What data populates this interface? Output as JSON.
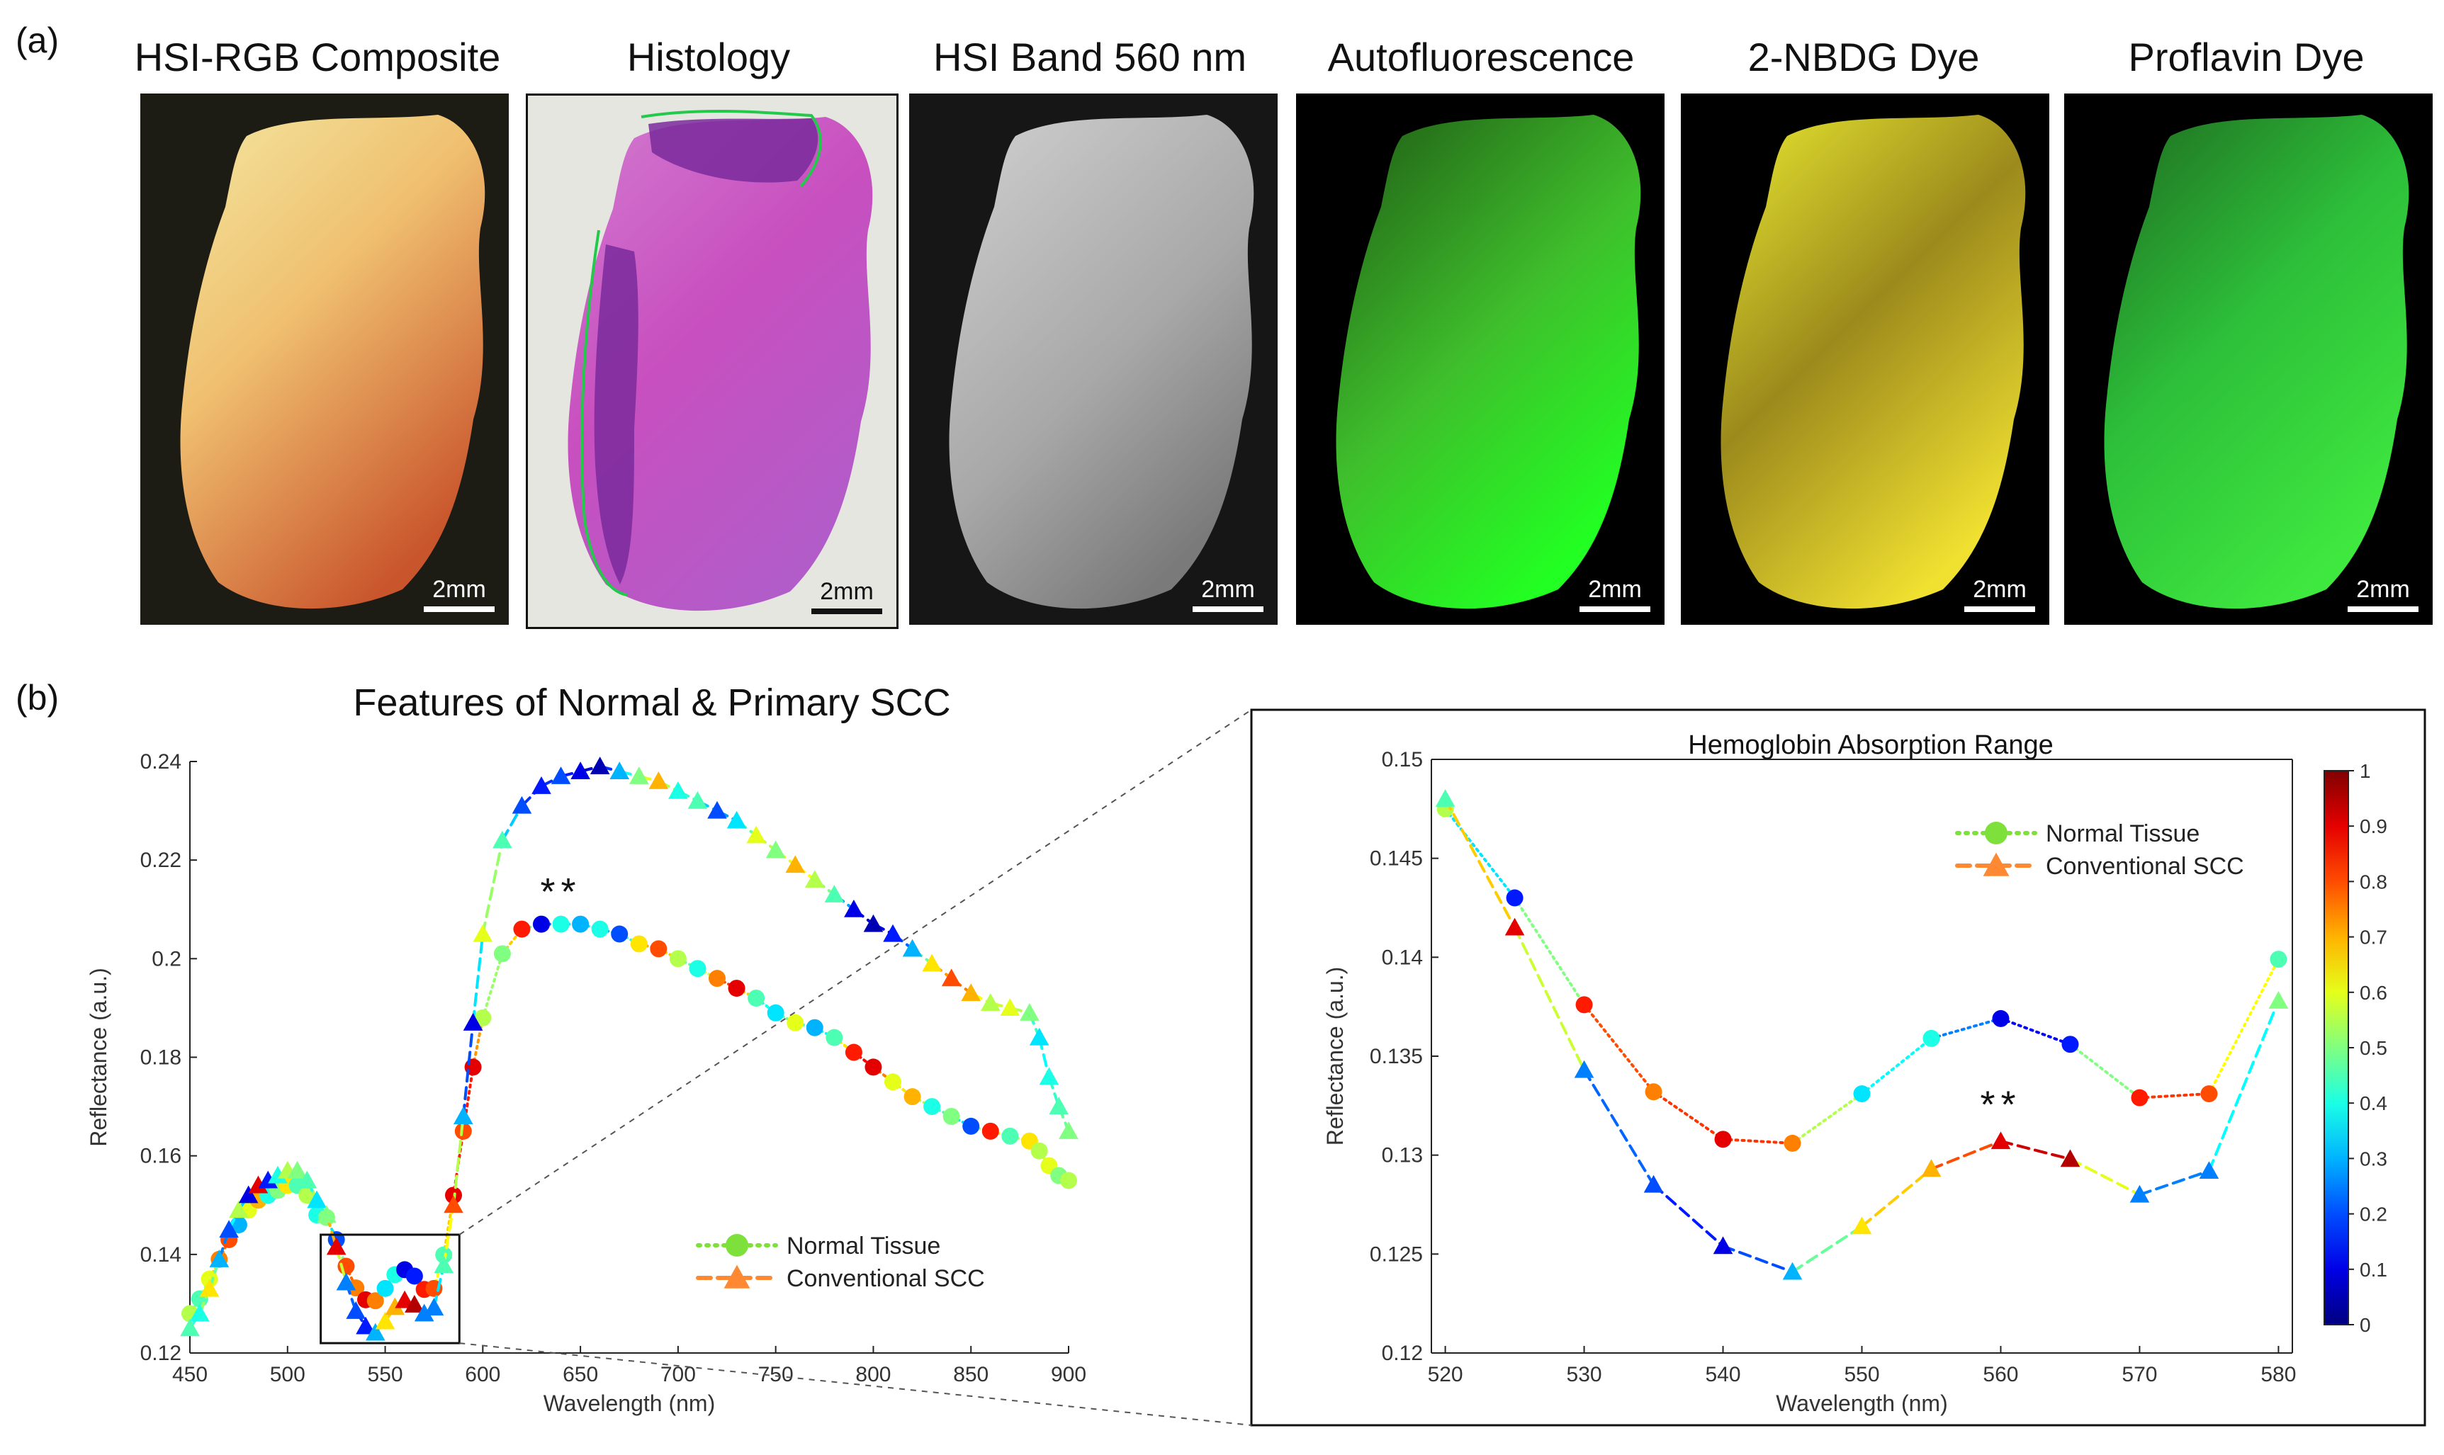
{
  "figure": {
    "panel_a_label": "(a)",
    "panel_b_label": "(b)",
    "images": [
      {
        "title": "HSI-RGB Composite",
        "scale": "2mm",
        "kind": "rgb"
      },
      {
        "title": "Histology",
        "scale": "2mm",
        "kind": "histology"
      },
      {
        "title": "HSI Band 560 nm",
        "scale": "2mm",
        "kind": "band"
      },
      {
        "title": "Autofluorescence",
        "scale": "2mm",
        "kind": "autofluo"
      },
      {
        "title": "2-NBDG Dye",
        "scale": "2mm",
        "kind": "nbdg"
      },
      {
        "title": "Proflavin Dye",
        "scale": "2mm",
        "kind": "proflavin"
      }
    ]
  },
  "chart_data": [
    {
      "type": "line",
      "title": "Features of Normal & Primary SCC",
      "xlabel": "Wavelength (nm)",
      "ylabel": "Reflectance (a.u.)",
      "xlim": [
        450,
        900
      ],
      "ylim": [
        0.12,
        0.24
      ],
      "xticks": [
        "450",
        "500",
        "550",
        "600",
        "650",
        "700",
        "750",
        "800",
        "850",
        "900"
      ],
      "yticks": [
        "0.12",
        "0.14",
        "0.16",
        "0.18",
        "0.2",
        "0.22",
        "0.24"
      ],
      "annotation": "**",
      "annotation_at": [
        640,
        0.211
      ],
      "inset_box": {
        "x": [
          517,
          588
        ],
        "y": [
          0.122,
          0.144
        ]
      },
      "legend": [
        "Normal Tissue",
        "Conventional SCC"
      ],
      "legend_position": "lower-right",
      "series": [
        {
          "name": "Normal Tissue",
          "marker": "circle",
          "line": "dotted",
          "x": [
            450,
            455,
            460,
            465,
            470,
            475,
            480,
            485,
            490,
            495,
            500,
            505,
            510,
            515,
            520,
            525,
            530,
            535,
            540,
            545,
            550,
            555,
            560,
            565,
            570,
            575,
            580,
            585,
            590,
            595,
            600,
            610,
            620,
            630,
            640,
            650,
            660,
            670,
            680,
            690,
            700,
            710,
            720,
            730,
            740,
            750,
            760,
            770,
            780,
            790,
            800,
            810,
            820,
            830,
            840,
            850,
            860,
            870,
            880,
            885,
            890,
            895,
            900
          ],
          "y": [
            0.128,
            0.131,
            0.135,
            0.139,
            0.143,
            0.146,
            0.149,
            0.151,
            0.152,
            0.153,
            0.154,
            0.154,
            0.152,
            0.148,
            0.1475,
            0.143,
            0.1376,
            0.1332,
            0.1308,
            0.1306,
            0.1331,
            0.1359,
            0.1369,
            0.1356,
            0.1329,
            0.1331,
            0.1399,
            0.152,
            0.165,
            0.178,
            0.188,
            0.201,
            0.206,
            0.207,
            0.207,
            0.207,
            0.206,
            0.205,
            0.203,
            0.202,
            0.2,
            0.198,
            0.196,
            0.194,
            0.192,
            0.189,
            0.187,
            0.186,
            0.184,
            0.181,
            0.178,
            0.175,
            0.172,
            0.17,
            0.168,
            0.166,
            0.165,
            0.164,
            0.163,
            0.161,
            0.158,
            0.156,
            0.155
          ],
          "colors": [
            0.55,
            0.45,
            0.6,
            0.75,
            0.8,
            0.3,
            0.6,
            0.7,
            0.4,
            0.5,
            0.65,
            0.45,
            0.55,
            0.4,
            0.5,
            0.2,
            0.8,
            0.75,
            0.9,
            0.75,
            0.35,
            0.4,
            0.1,
            0.15,
            0.85,
            0.8,
            0.45,
            0.9,
            0.8,
            0.9,
            0.55,
            0.5,
            0.85,
            0.1,
            0.4,
            0.3,
            0.4,
            0.2,
            0.65,
            0.8,
            0.55,
            0.4,
            0.75,
            0.9,
            0.45,
            0.35,
            0.6,
            0.3,
            0.45,
            0.85,
            0.9,
            0.6,
            0.7,
            0.4,
            0.5,
            0.2,
            0.85,
            0.45,
            0.65,
            0.55,
            0.6,
            0.5,
            0.55
          ]
        },
        {
          "name": "Conventional SCC",
          "marker": "triangle",
          "line": "dashed",
          "x": [
            450,
            455,
            460,
            465,
            470,
            475,
            480,
            485,
            490,
            495,
            500,
            505,
            510,
            515,
            520,
            525,
            530,
            535,
            540,
            545,
            550,
            555,
            560,
            565,
            570,
            575,
            580,
            585,
            590,
            595,
            600,
            610,
            620,
            630,
            640,
            650,
            660,
            670,
            680,
            690,
            700,
            710,
            720,
            730,
            740,
            750,
            760,
            770,
            780,
            790,
            800,
            810,
            820,
            830,
            840,
            850,
            860,
            870,
            880,
            885,
            890,
            895,
            900
          ],
          "y": [
            0.125,
            0.128,
            0.133,
            0.139,
            0.145,
            0.149,
            0.152,
            0.154,
            0.155,
            0.156,
            0.157,
            0.157,
            0.155,
            0.151,
            0.148,
            0.1415,
            0.1343,
            0.1285,
            0.1254,
            0.1241,
            0.1264,
            0.1293,
            0.1307,
            0.1298,
            0.128,
            0.1292,
            0.1378,
            0.15,
            0.168,
            0.187,
            0.205,
            0.224,
            0.231,
            0.235,
            0.237,
            0.238,
            0.239,
            0.238,
            0.237,
            0.236,
            0.234,
            0.232,
            0.23,
            0.228,
            0.225,
            0.222,
            0.219,
            0.216,
            0.213,
            0.21,
            0.207,
            0.205,
            0.202,
            0.199,
            0.196,
            0.193,
            0.191,
            0.19,
            0.189,
            0.184,
            0.176,
            0.17,
            0.165
          ],
          "colors": [
            0.45,
            0.4,
            0.65,
            0.3,
            0.2,
            0.55,
            0.1,
            0.9,
            0.15,
            0.4,
            0.55,
            0.5,
            0.45,
            0.35,
            0.5,
            0.9,
            0.25,
            0.2,
            0.15,
            0.3,
            0.65,
            0.7,
            0.9,
            0.95,
            0.25,
            0.25,
            0.45,
            0.8,
            0.3,
            0.1,
            0.6,
            0.45,
            0.2,
            0.15,
            0.2,
            0.1,
            0.05,
            0.3,
            0.5,
            0.7,
            0.4,
            0.45,
            0.2,
            0.35,
            0.6,
            0.5,
            0.7,
            0.55,
            0.45,
            0.1,
            0.05,
            0.15,
            0.3,
            0.65,
            0.8,
            0.7,
            0.55,
            0.6,
            0.5,
            0.35,
            0.4,
            0.45,
            0.5
          ]
        }
      ]
    },
    {
      "type": "line",
      "title": "Hemoglobin Absorption Range",
      "xlabel": "Wavelength (nm)",
      "ylabel": "Reflectance (a.u.)",
      "xlim": [
        519,
        581
      ],
      "ylim": [
        0.12,
        0.15
      ],
      "xticks": [
        "520",
        "530",
        "540",
        "550",
        "560",
        "570",
        "580"
      ],
      "yticks": [
        "0.12",
        "0.125",
        "0.13",
        "0.135",
        "0.14",
        "0.145",
        "0.15"
      ],
      "annotation": "**",
      "annotation_at": [
        560,
        0.1319
      ],
      "legend": [
        "Normal Tissue",
        "Conventional SCC"
      ],
      "legend_position": "top-right",
      "colorbar": {
        "min": 0,
        "max": 1,
        "ticks": [
          "0",
          "0.1",
          "0.2",
          "0.3",
          "0.4",
          "0.5",
          "0.6",
          "0.7",
          "0.8",
          "0.9",
          "1"
        ]
      },
      "series": [
        {
          "name": "Normal Tissue",
          "marker": "circle",
          "line": "dotted",
          "x": [
            520,
            525,
            530,
            535,
            540,
            545,
            550,
            555,
            560,
            565,
            570,
            575,
            580
          ],
          "y": [
            0.1475,
            0.143,
            0.1376,
            0.1332,
            0.1308,
            0.1306,
            0.1331,
            0.1359,
            0.1369,
            0.1356,
            0.1329,
            0.1331,
            0.1399
          ],
          "colors": [
            0.55,
            0.15,
            0.85,
            0.75,
            0.9,
            0.75,
            0.35,
            0.4,
            0.1,
            0.15,
            0.85,
            0.8,
            0.45
          ]
        },
        {
          "name": "Conventional SCC",
          "marker": "triangle",
          "line": "dashed",
          "x": [
            520,
            525,
            530,
            535,
            540,
            545,
            550,
            555,
            560,
            565,
            570,
            575,
            580
          ],
          "y": [
            0.148,
            0.1415,
            0.1343,
            0.1285,
            0.1254,
            0.1241,
            0.1264,
            0.1293,
            0.1307,
            0.1298,
            0.128,
            0.1292,
            0.1378
          ],
          "colors": [
            0.45,
            0.9,
            0.25,
            0.2,
            0.1,
            0.3,
            0.65,
            0.7,
            0.9,
            0.95,
            0.25,
            0.25,
            0.5
          ]
        }
      ]
    }
  ]
}
